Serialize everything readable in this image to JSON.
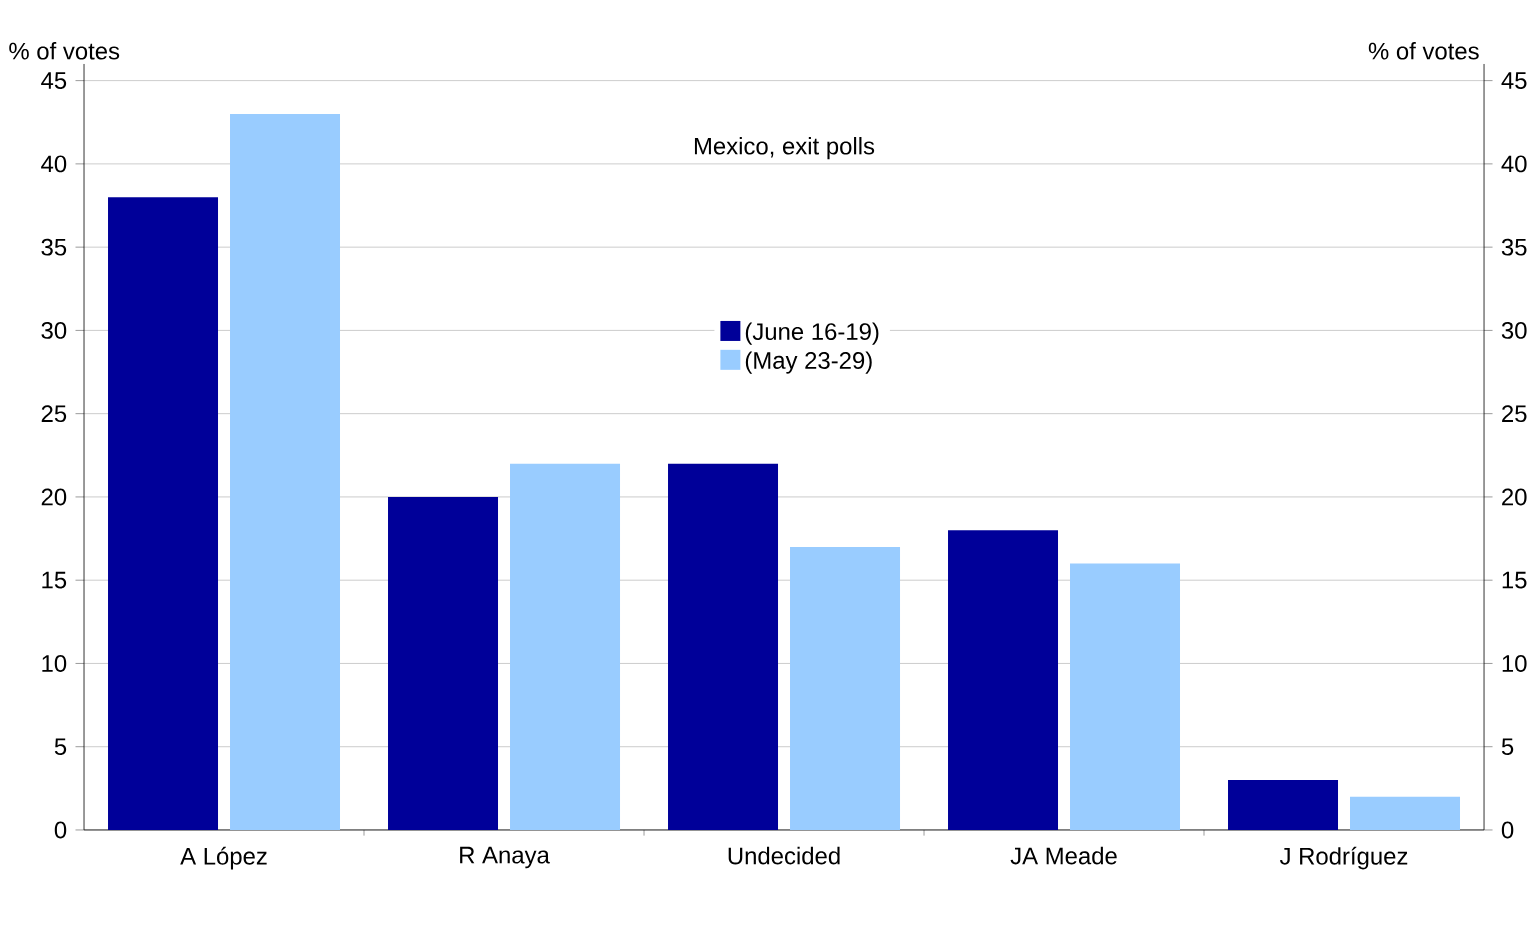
{
  "chart_data": {
    "type": "bar",
    "title": "Mexico, exit polls",
    "ylabel": "% of votes",
    "y2label": "% of votes",
    "categories": [
      "A López",
      "R Anaya",
      "Undecided",
      "JA Meade",
      "J Rodríguez"
    ],
    "series": [
      {
        "name": "(June 16-19)",
        "color": "#000099",
        "values": [
          38,
          20,
          22,
          18,
          3
        ]
      },
      {
        "name": "(May 23-29)",
        "color": "#99ccff",
        "values": [
          43,
          22,
          17,
          16,
          2
        ]
      }
    ],
    "ylim": [
      0,
      46
    ],
    "yticks": [
      0,
      5,
      10,
      15,
      20,
      25,
      30,
      35,
      40,
      45
    ],
    "y2lim": [
      0,
      46
    ],
    "y2ticks": [
      0,
      5,
      10,
      15,
      20,
      25,
      30,
      35,
      40,
      45
    ],
    "grid": "y",
    "legend": "center"
  }
}
